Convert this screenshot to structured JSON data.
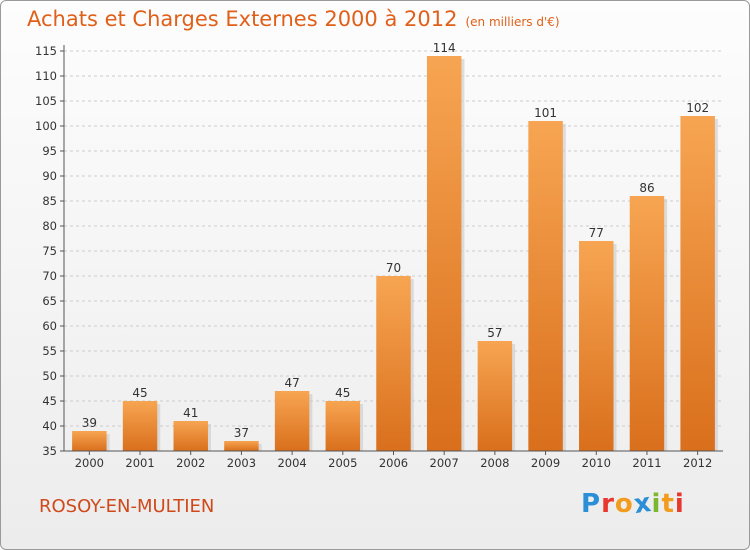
{
  "title": "Achats et Charges Externes 2000 à 2012",
  "unit": "(en milliers d'€)",
  "location": "ROSOY-EN-MULTIEN",
  "logo": {
    "text": "Proxiti",
    "letters": [
      {
        "char": "P",
        "color": "#2a8fd6"
      },
      {
        "char": "r",
        "color": "#e8372c"
      },
      {
        "char": "o",
        "color": "#f29b1d"
      },
      {
        "char": "x",
        "color": "#2a8fd6"
      },
      {
        "char": "i",
        "color": "#7cb82f"
      },
      {
        "char": "t",
        "color": "#f29b1d"
      },
      {
        "char": "i",
        "color": "#e8372c"
      }
    ]
  },
  "colors": {
    "title": "#e0601a",
    "bar_top": "#f7a552",
    "bar_bottom": "#d96f1c",
    "axis": "#555555",
    "grid": "#cccccc"
  },
  "chart_data": {
    "type": "bar",
    "categories": [
      "2000",
      "2001",
      "2002",
      "2003",
      "2004",
      "2005",
      "2006",
      "2007",
      "2008",
      "2009",
      "2010",
      "2011",
      "2012"
    ],
    "values": [
      39,
      45,
      41,
      37,
      47,
      45,
      70,
      114,
      57,
      101,
      77,
      86,
      102
    ],
    "ylim": [
      35,
      115
    ],
    "yticks": [
      35,
      40,
      45,
      50,
      55,
      60,
      65,
      70,
      75,
      80,
      85,
      90,
      95,
      100,
      105,
      110,
      115
    ],
    "grid": "horizontal dashed",
    "data_labels": true
  }
}
